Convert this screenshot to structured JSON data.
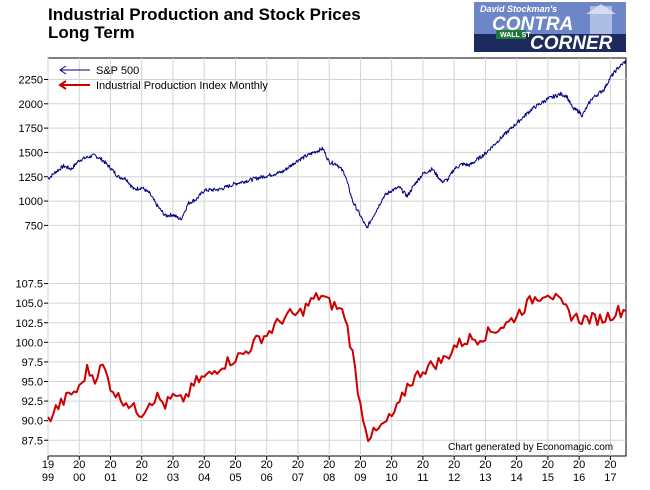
{
  "chart_data": {
    "type": "line",
    "title_lines": [
      "Industrial Production and Stock Prices",
      "Long Term"
    ],
    "credit": "Chart generated by Economagic.com",
    "logo": {
      "line1": "David Stockman's",
      "line2": "CONTRA",
      "line3": "CORNER",
      "sign": "WALL ST",
      "colors": {
        "sky": "#6d86c8",
        "dark": "#1c2a5e",
        "sign": "#1f7a3a"
      }
    },
    "legend_placement": "top-left",
    "x_axis": {
      "range": [
        1999.0,
        2017.5
      ],
      "tick_labels": [
        {
          "x": 1999,
          "top": "19",
          "bottom": "99"
        },
        {
          "x": 2000,
          "top": "20",
          "bottom": "00"
        },
        {
          "x": 2001,
          "top": "20",
          "bottom": "01"
        },
        {
          "x": 2002,
          "top": "20",
          "bottom": "02"
        },
        {
          "x": 2003,
          "top": "20",
          "bottom": "03"
        },
        {
          "x": 2004,
          "top": "20",
          "bottom": "04"
        },
        {
          "x": 2005,
          "top": "20",
          "bottom": "05"
        },
        {
          "x": 2006,
          "top": "20",
          "bottom": "06"
        },
        {
          "x": 2007,
          "top": "20",
          "bottom": "07"
        },
        {
          "x": 2008,
          "top": "20",
          "bottom": "08"
        },
        {
          "x": 2009,
          "top": "20",
          "bottom": "09"
        },
        {
          "x": 2010,
          "top": "20",
          "bottom": "10"
        },
        {
          "x": 2011,
          "top": "20",
          "bottom": "11"
        },
        {
          "x": 2012,
          "top": "20",
          "bottom": "12"
        },
        {
          "x": 2013,
          "top": "20",
          "bottom": "13"
        },
        {
          "x": 2014,
          "top": "20",
          "bottom": "14"
        },
        {
          "x": 2015,
          "top": "20",
          "bottom": "15"
        },
        {
          "x": 2016,
          "top": "20",
          "bottom": "16"
        },
        {
          "x": 2017,
          "top": "20",
          "bottom": "17"
        }
      ]
    },
    "upper_panel": {
      "ylim": [
        600,
        2450
      ],
      "ticks": [
        750,
        1000,
        1250,
        1500,
        1750,
        2000,
        2250
      ],
      "tick_labels": [
        "750",
        "1000",
        "1250",
        "1500",
        "1750",
        "2000",
        "2250"
      ]
    },
    "lower_panel": {
      "ylim": [
        86.0,
        110.0
      ],
      "ticks": [
        87.5,
        90.0,
        92.5,
        95.0,
        97.5,
        100.0,
        102.5,
        105.0,
        107.5
      ],
      "tick_labels": [
        "87.5",
        "90.0",
        "92.5",
        "95.0",
        "97.5",
        "100.0",
        "102.5",
        "105.0",
        "107.5"
      ]
    },
    "series": [
      {
        "name": "S&P 500",
        "panel": "upper",
        "color": "#000080",
        "x": [
          1999.0,
          1999.25,
          1999.5,
          1999.75,
          2000.0,
          2000.25,
          2000.5,
          2000.75,
          2001.0,
          2001.25,
          2001.5,
          2001.75,
          2002.0,
          2002.25,
          2002.5,
          2002.75,
          2003.0,
          2003.25,
          2003.5,
          2003.75,
          2004.0,
          2004.5,
          2005.0,
          2005.5,
          2006.0,
          2006.5,
          2007.0,
          2007.5,
          2007.8,
          2008.0,
          2008.25,
          2008.5,
          2008.75,
          2009.0,
          2009.2,
          2009.5,
          2009.75,
          2010.0,
          2010.25,
          2010.5,
          2010.75,
          2011.0,
          2011.3,
          2011.6,
          2011.8,
          2012.0,
          2012.25,
          2012.5,
          2012.75,
          2013.0,
          2013.5,
          2014.0,
          2014.5,
          2015.0,
          2015.4,
          2015.6,
          2015.8,
          2016.0,
          2016.1,
          2016.4,
          2016.8,
          2017.0,
          2017.25,
          2017.5
        ],
        "values": [
          1230,
          1300,
          1360,
          1330,
          1420,
          1450,
          1470,
          1420,
          1340,
          1250,
          1230,
          1120,
          1140,
          1080,
          950,
          850,
          860,
          810,
          980,
          1020,
          1110,
          1120,
          1180,
          1220,
          1260,
          1300,
          1420,
          1500,
          1540,
          1400,
          1380,
          1280,
          1000,
          850,
          720,
          900,
          1050,
          1110,
          1140,
          1050,
          1180,
          1280,
          1330,
          1200,
          1220,
          1330,
          1380,
          1370,
          1430,
          1490,
          1650,
          1800,
          1950,
          2050,
          2100,
          2080,
          1950,
          1920,
          1880,
          2050,
          2150,
          2270,
          2370,
          2440
        ]
      },
      {
        "name": "Industrial Production Index Monthly",
        "panel": "lower",
        "color": "#cc0000",
        "x": [
          1999.0,
          1999.25,
          1999.5,
          1999.75,
          2000.0,
          2000.25,
          2000.5,
          2000.75,
          2001.0,
          2001.25,
          2001.5,
          2001.75,
          2002.0,
          2002.25,
          2002.5,
          2002.75,
          2003.0,
          2003.25,
          2003.5,
          2003.75,
          2004.0,
          2004.25,
          2004.5,
          2004.75,
          2005.0,
          2005.25,
          2005.5,
          2005.75,
          2006.0,
          2006.25,
          2006.5,
          2006.75,
          2007.0,
          2007.25,
          2007.5,
          2007.75,
          2008.0,
          2008.25,
          2008.5,
          2008.75,
          2009.0,
          2009.25,
          2009.5,
          2009.75,
          2010.0,
          2010.25,
          2010.5,
          2010.75,
          2011.0,
          2011.25,
          2011.5,
          2011.75,
          2012.0,
          2012.25,
          2012.5,
          2012.75,
          2013.0,
          2013.25,
          2013.5,
          2013.75,
          2014.0,
          2014.25,
          2014.5,
          2014.75,
          2015.0,
          2015.25,
          2015.5,
          2015.75,
          2016.0,
          2016.25,
          2016.5,
          2016.75,
          2017.0,
          2017.25,
          2017.5
        ],
        "values": [
          90.0,
          91.5,
          92.5,
          93.5,
          94.0,
          96.5,
          95.5,
          97.0,
          94.5,
          93.0,
          92.5,
          91.5,
          91.0,
          92.5,
          93.0,
          92.0,
          93.0,
          92.5,
          93.5,
          95.0,
          95.5,
          96.0,
          97.0,
          97.5,
          98.0,
          98.5,
          99.5,
          100.5,
          101.0,
          102.0,
          103.0,
          103.5,
          103.5,
          104.5,
          105.5,
          106.0,
          105.0,
          104.5,
          103.5,
          98.5,
          92.0,
          88.0,
          88.5,
          89.5,
          90.5,
          92.0,
          94.5,
          95.5,
          96.5,
          97.0,
          97.5,
          98.0,
          99.5,
          100.0,
          100.5,
          100.5,
          101.0,
          101.5,
          102.0,
          102.5,
          103.5,
          104.5,
          105.5,
          106.0,
          106.5,
          105.5,
          104.5,
          103.5,
          103.0,
          103.0,
          103.0,
          103.0,
          103.5,
          104.0,
          104.0
        ]
      }
    ]
  }
}
